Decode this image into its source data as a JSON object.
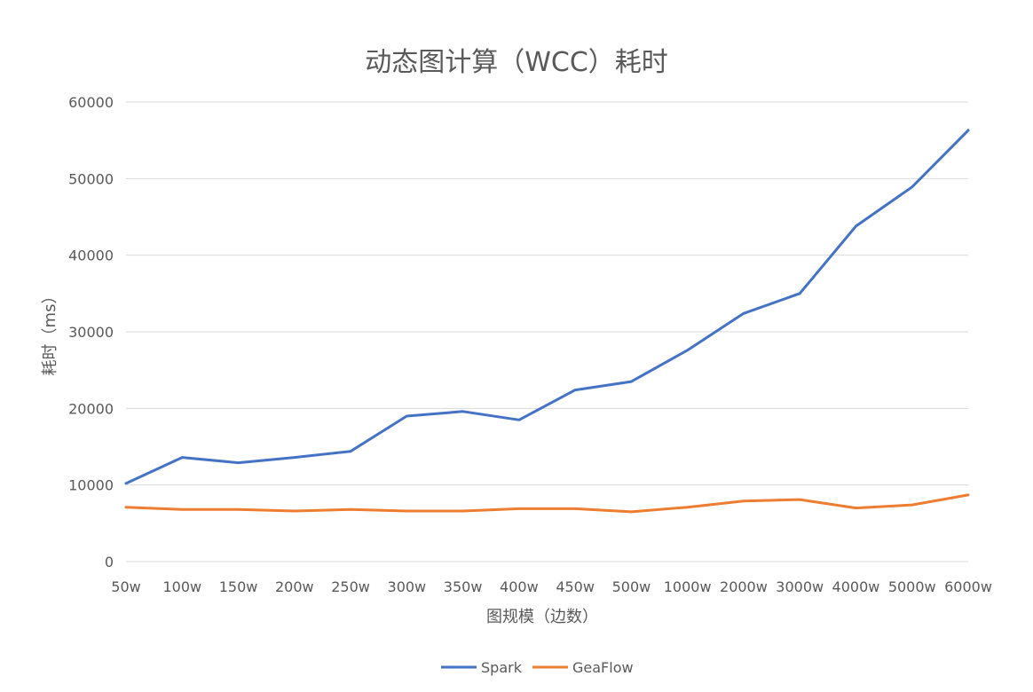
{
  "chart_data": {
    "type": "line",
    "title": "动态图计算（WCC）耗时",
    "xlabel": "图规模（边数）",
    "ylabel": "耗时（ms）",
    "categories": [
      "50w",
      "100w",
      "150w",
      "200w",
      "250w",
      "300w",
      "350w",
      "400w",
      "450w",
      "500w",
      "1000w",
      "2000w",
      "3000w",
      "4000w",
      "5000w",
      "6000w"
    ],
    "ylim": [
      0,
      60000
    ],
    "yticks": [
      0,
      10000,
      20000,
      30000,
      40000,
      50000,
      60000
    ],
    "grid": true,
    "legend": "bottom",
    "series": [
      {
        "name": "Spark",
        "color": "#4472C4",
        "values": [
          10200,
          13600,
          12900,
          13600,
          14400,
          19000,
          19600,
          18500,
          22400,
          23500,
          27600,
          32400,
          35000,
          43800,
          48900,
          56300
        ]
      },
      {
        "name": "GeaFlow",
        "color": "#ED7D31",
        "values": [
          7100,
          6800,
          6800,
          6600,
          6800,
          6600,
          6600,
          6900,
          6900,
          6500,
          7100,
          7900,
          8100,
          7000,
          7400,
          8700
        ]
      }
    ]
  }
}
